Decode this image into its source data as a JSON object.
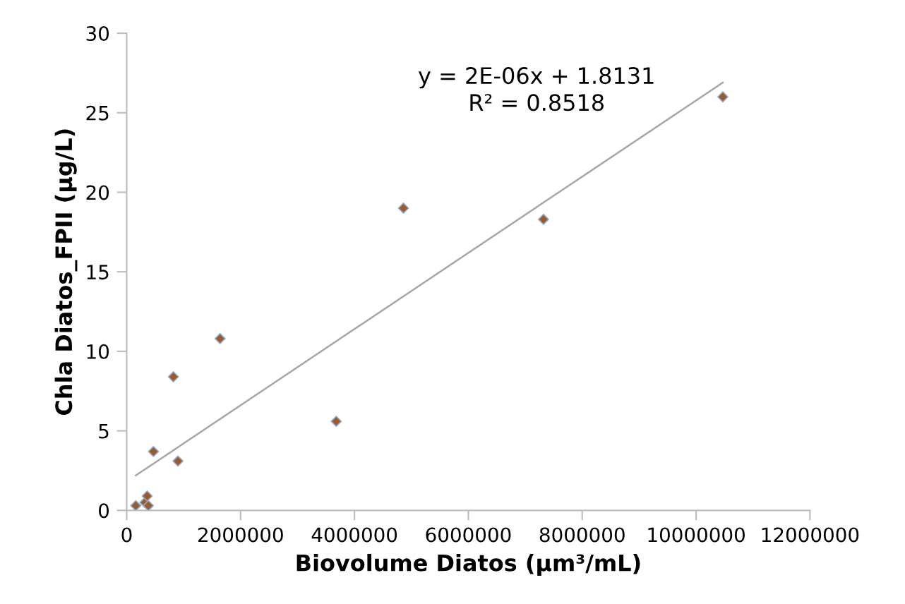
{
  "chart_data": {
    "type": "scatter",
    "xlabel": "Biovolume Diatos (µm³/mL)",
    "ylabel": "Chla Diatos_FPII (µg/L)",
    "annotations": [
      "y = 2E-06x + 1.8131\nR² = 0.8518"
    ],
    "xlim": [
      0,
      12000000
    ],
    "xticks": [
      0,
      2000000,
      4000000,
      6000000,
      8000000,
      10000000,
      12000000
    ],
    "ylim": [
      0,
      30
    ],
    "yticks": [
      0,
      5,
      10,
      15,
      20,
      25,
      30
    ],
    "grid": false,
    "legend": false,
    "series": [
      {
        "color": "#9c5a2a",
        "marker": "diamond",
        "x": [
          160000,
          320000,
          360000,
          380000,
          470000,
          820000,
          900000,
          1640000,
          3680000,
          4860000,
          7320000,
          10470000
        ],
        "values": [
          0.3,
          0.5,
          0.9,
          0.3,
          3.7,
          8.4,
          3.1,
          10.8,
          5.6,
          19.0,
          18.3,
          26.0
        ]
      },
      {
        "type": "line",
        "color": "#a6a6a6",
        "marker": "none",
        "line_style": "solid",
        "x": [
          160000,
          10470000
        ],
        "values": [
          2.2,
          26.9
        ]
      }
    ]
  }
}
